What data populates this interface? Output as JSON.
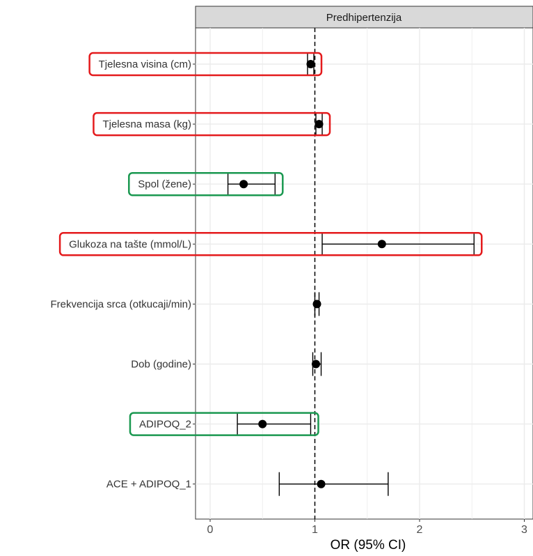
{
  "chart_data": {
    "type": "forest",
    "panel_title": "Predhipertenzija",
    "xlabel": "OR (95% CI)",
    "xlim": [
      -0.15,
      3.1
    ],
    "xticks": [
      0,
      1,
      2,
      3
    ],
    "reference_line": 1,
    "grid": true,
    "rows": [
      {
        "label": "Tjelesna visina (cm)",
        "or": 0.96,
        "lo": 0.93,
        "hi": 0.99,
        "highlight": "red"
      },
      {
        "label": "Tjelesna masa (kg)",
        "or": 1.04,
        "lo": 1.01,
        "hi": 1.07,
        "highlight": "red"
      },
      {
        "label": "Spol (žene)",
        "or": 0.32,
        "lo": 0.17,
        "hi": 0.62,
        "highlight": "green"
      },
      {
        "label": "Glukoza na tašte (mmol/L)",
        "or": 1.64,
        "lo": 1.07,
        "hi": 2.52,
        "highlight": "red"
      },
      {
        "label": "Frekvencija srca (otkucaji/min)",
        "or": 1.02,
        "lo": 1.0,
        "hi": 1.04,
        "highlight": ""
      },
      {
        "label": "Dob (godine)",
        "or": 1.01,
        "lo": 0.98,
        "hi": 1.06,
        "highlight": ""
      },
      {
        "label": "ADIPOQ_2",
        "or": 0.5,
        "lo": 0.26,
        "hi": 0.96,
        "highlight": "green"
      },
      {
        "label": "ACE + ADIPOQ_1",
        "or": 1.06,
        "lo": 0.66,
        "hi": 1.7,
        "highlight": ""
      }
    ],
    "colors": {
      "point": "#000000",
      "red_box": "#e41a1c",
      "green_box": "#1a9850",
      "grid": "#ebebeb",
      "strip_fill": "#d9d9d9",
      "panel_border": "#333333"
    }
  }
}
